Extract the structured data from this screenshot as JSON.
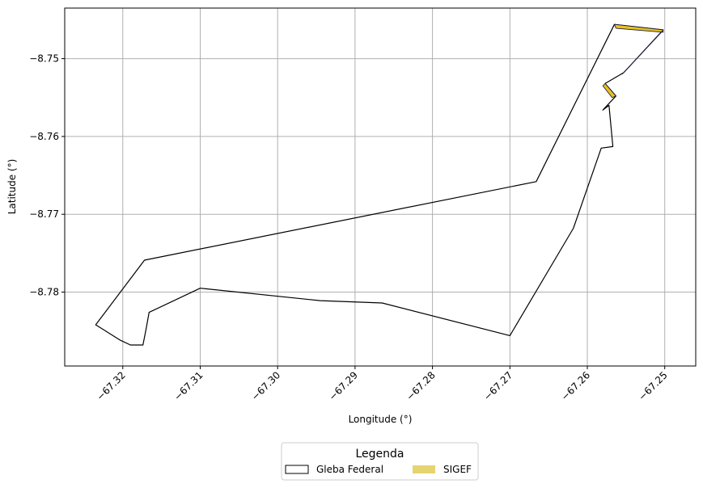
{
  "chart_data": {
    "type": "map",
    "xlabel": "Longitude (°)",
    "ylabel": "Latitude (°)",
    "xlim": [
      -67.3275,
      -67.246
    ],
    "ylim": [
      -8.7895,
      -8.7435
    ],
    "x_ticks": [
      -67.32,
      -67.31,
      -67.3,
      -67.29,
      -67.28,
      -67.27,
      -67.26,
      -67.25
    ],
    "x_tick_labels": [
      "−67.32",
      "−67.31",
      "−67.30",
      "−67.29",
      "−67.28",
      "−67.27",
      "−67.26",
      "−67.25"
    ],
    "y_ticks": [
      -8.75,
      -8.76,
      -8.77,
      -8.78
    ],
    "y_tick_labels": [
      "−8.75",
      "−8.76",
      "−8.77",
      "−8.78"
    ],
    "grid": true,
    "legend": {
      "title": "Legenda",
      "placement": "bottom-center",
      "entries": [
        {
          "label": "Gleba Federal",
          "fill": "#ffffff",
          "stroke": "#000000"
        },
        {
          "label": "SIGEF",
          "fill": "#e6d472",
          "stroke": "none"
        }
      ]
    },
    "series": [
      {
        "name": "Gleba Federal",
        "kind": "polygon",
        "fill": "none",
        "stroke": "#000000",
        "points": [
          [
            -67.3235,
            -8.7842
          ],
          [
            -67.3203,
            -8.7862
          ],
          [
            -67.319,
            -8.7868
          ],
          [
            -67.3174,
            -8.7868
          ],
          [
            -67.317,
            -8.7848
          ],
          [
            -67.3166,
            -8.7826
          ],
          [
            -67.31,
            -8.7795
          ],
          [
            -67.2945,
            -8.7811
          ],
          [
            -67.2865,
            -8.7814
          ],
          [
            -67.27,
            -8.7856
          ],
          [
            -67.2618,
            -8.7718
          ],
          [
            -67.2582,
            -8.7615
          ],
          [
            -67.2567,
            -8.7613
          ],
          [
            -67.2572,
            -8.756
          ],
          [
            -67.258,
            -8.7566
          ],
          [
            -67.2563,
            -8.7548
          ],
          [
            -67.2577,
            -8.7532
          ],
          [
            -67.2553,
            -8.7518
          ],
          [
            -67.2502,
            -8.7463
          ],
          [
            -67.2565,
            -8.7456
          ],
          [
            -67.2666,
            -8.7658
          ],
          [
            -67.3172,
            -8.7759
          ],
          [
            -67.3235,
            -8.7842
          ]
        ]
      },
      {
        "name": "SIGEF",
        "kind": "polygons",
        "fill": "#e6c21e",
        "stroke": "#1a1a44",
        "polygons": [
          [
            [
              -67.2565,
              -8.7456
            ],
            [
              -67.2502,
              -8.7463
            ],
            [
              -67.2502,
              -8.7466
            ],
            [
              -67.2563,
              -8.7461
            ]
          ],
          [
            [
              -67.2502,
              -8.7463
            ],
            [
              -67.2553,
              -8.7518
            ],
            [
              -67.2555,
              -8.752
            ],
            [
              -67.2505,
              -8.7467
            ]
          ],
          [
            [
              -67.2577,
              -8.7532
            ],
            [
              -67.2563,
              -8.7548
            ],
            [
              -67.2568,
              -8.755
            ],
            [
              -67.258,
              -8.7535
            ]
          ]
        ]
      }
    ]
  }
}
